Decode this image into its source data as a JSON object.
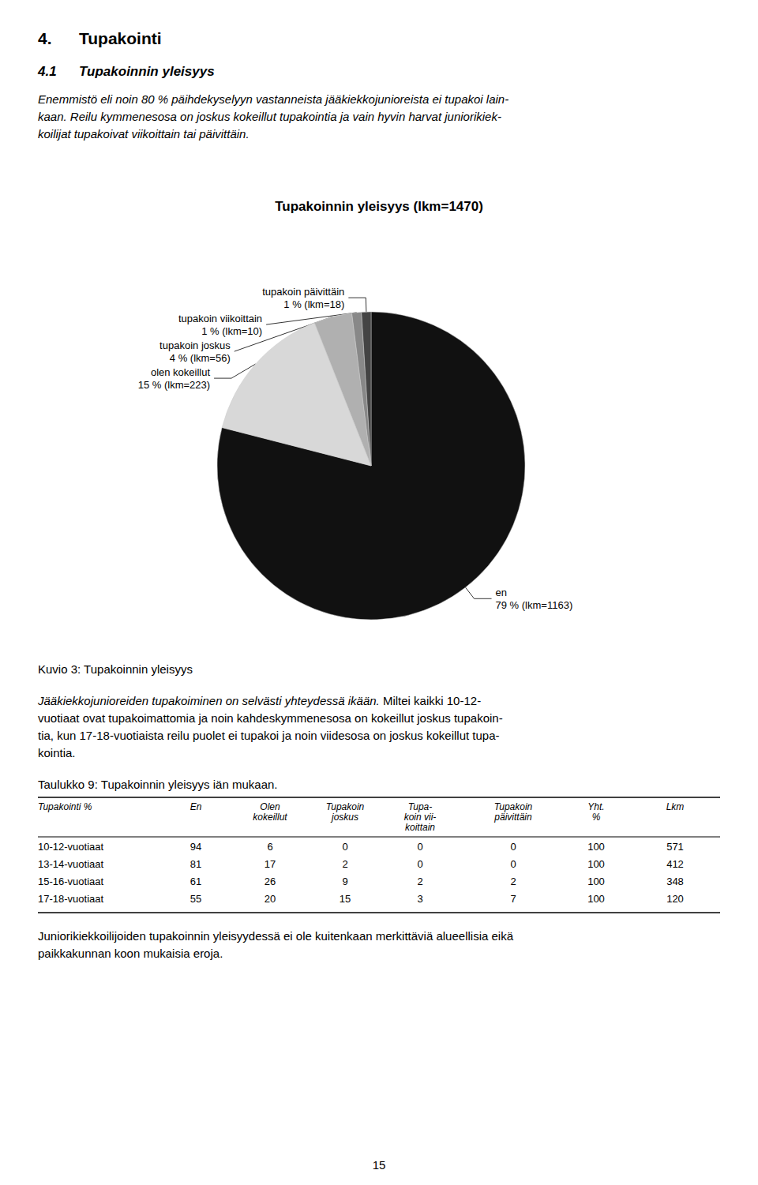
{
  "chart_data": [
    {
      "type": "pie",
      "title": "Tupakoinnin yleisyys (lkm=1470)",
      "categories": [
        "en",
        "olen kokeillut",
        "tupakoin joskus",
        "tupakoin viikoittain",
        "tupakoin päivittäin"
      ],
      "values": [
        79.0,
        15.0,
        4.0,
        1.0,
        1.0
      ],
      "value_labels": [
        "79 % (lkm=1163)",
        "15 % (lkm=223)",
        "4 % (lkm=56)",
        "1 % (lkm=10)",
        "1 % (lkm=18)"
      ],
      "colors": [
        "#111111",
        "#d8d8d8",
        "#b0b0b0",
        "#888888",
        "#444444"
      ],
      "data_labels": true,
      "annotations": [
        "4.",
        "Tupakointi",
        "4.1",
        "Tupakoinnin yleisyys",
        "Enemmistö eli noin 80 % päihdekyselyyn vastanneista jääkiekkojunioreista ei tupakoi lain-",
        "kaan. Reilu kymmenesosa on joskus kokeillut tupakointia ja vain hyvin harvat juniorikiek-",
        "koilijat tupakoivat viikoittain tai päivittäin.",
        "Kuvio 3: Tupakoinnin yleisyys",
        "Jääkiekkojunioreiden tupakoiminen on selvästi yhteydessä ikään.",
        " Miltei kaikki 10-12-",
        "vuotiaat ovat tupakoimattomia ja noin kahdeskymmenesosa on kokeillut joskus tupakoin-",
        "tia, kun 17-18-vuotiaista reilu puolet ei tupakoi ja noin viidesosa on joskus kokeillut tupa-",
        "kointia.",
        "Juniorikiekkoilijoiden tupakoinnin yleisyydessä ei ole kuitenkaan merkittäviä alueellisia eikä",
        "paikkakunnan koon mukaisia eroja.",
        "15"
      ]
    },
    {
      "type": "table",
      "title": "Taulukko 9: Tupakoinnin yleisyys iän mukaan.",
      "xlabel": "Tupakointi %",
      "categories": [
        "10-12-vuotiaat",
        "13-14-vuotiaat",
        "15-16-vuotiaat",
        "17-18-vuotiaat"
      ],
      "series": [
        {
          "name": "En",
          "values": [
            94,
            81,
            61,
            55
          ]
        },
        {
          "name": "Olen\nkokeillut",
          "values": [
            6,
            17,
            26,
            20
          ]
        },
        {
          "name": "Tupakoin\njoskus",
          "values": [
            0,
            2,
            9,
            15
          ]
        },
        {
          "name": "Tupa-\nkoin vii-\nkoittain",
          "values": [
            0,
            0,
            2,
            3
          ]
        },
        {
          "name": "Tupakoin\npäivittäin",
          "values": [
            0,
            0,
            2,
            7
          ]
        },
        {
          "name": "Yht.\n%",
          "values": [
            100,
            100,
            100,
            100
          ]
        },
        {
          "name": "Lkm",
          "values": [
            571,
            412,
            348,
            120
          ]
        }
      ]
    }
  ]
}
